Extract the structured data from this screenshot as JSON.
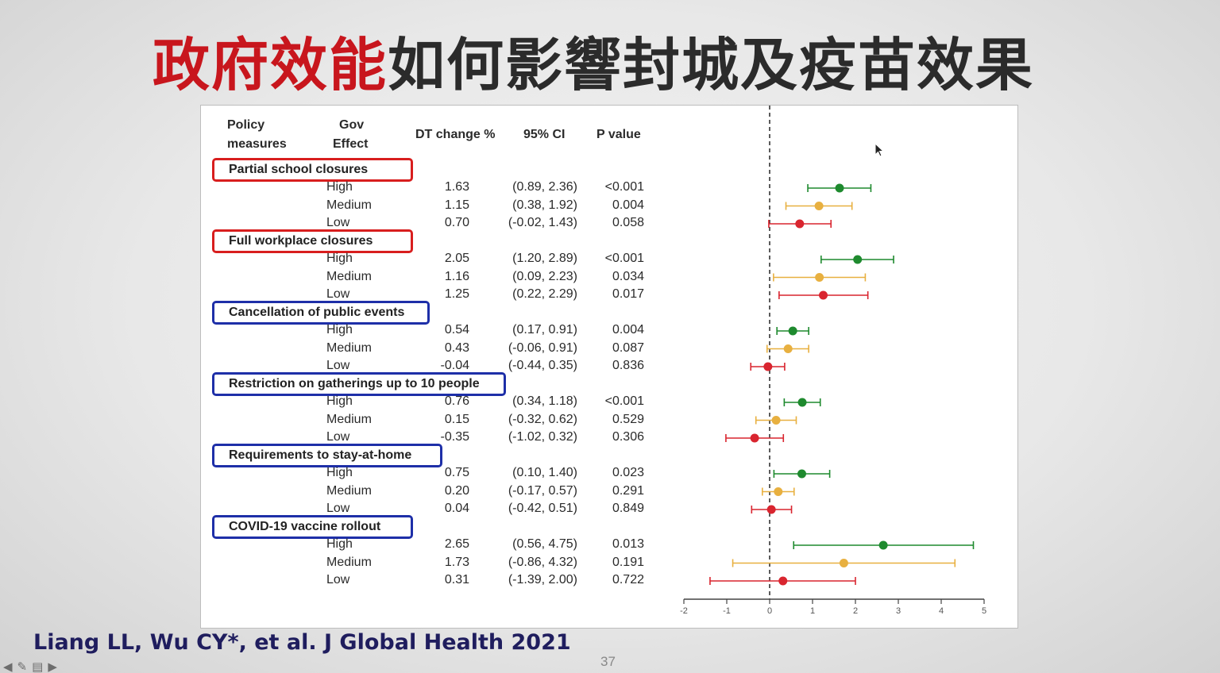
{
  "slide": {
    "title_highlight": "政府效能",
    "title_rest": "如何影響封城及疫苗效果",
    "citation": "Liang LL, Wu CY*, et al. J Global Health 2021",
    "page_number": "37"
  },
  "table": {
    "headers": {
      "policy_line1": "Policy",
      "policy_line2": "measures",
      "gov_line1": "Gov",
      "gov_line2": "Effect",
      "dt_change": "DT change %",
      "ci": "95% CI",
      "p_value": "P value"
    },
    "groups": [
      {
        "policy": "Partial school closures",
        "box_color": "#d81e1e",
        "rows": [
          {
            "level": "High",
            "dt": "1.63",
            "ci": "(0.89, 2.36)",
            "p": "<0.001"
          },
          {
            "level": "Medium",
            "dt": "1.15",
            "ci": "(0.38, 1.92)",
            "p": "0.004"
          },
          {
            "level": "Low",
            "dt": "0.70",
            "ci": "(-0.02, 1.43)",
            "p": "0.058"
          }
        ]
      },
      {
        "policy": "Full workplace closures",
        "box_color": "#d81e1e",
        "rows": [
          {
            "level": "High",
            "dt": "2.05",
            "ci": "(1.20, 2.89)",
            "p": "<0.001"
          },
          {
            "level": "Medium",
            "dt": "1.16",
            "ci": "(0.09, 2.23)",
            "p": "0.034"
          },
          {
            "level": "Low",
            "dt": "1.25",
            "ci": "(0.22, 2.29)",
            "p": "0.017"
          }
        ]
      },
      {
        "policy": "Cancellation of public events",
        "box_color": "#1e2fa8",
        "rows": [
          {
            "level": "High",
            "dt": "0.54",
            "ci": "(0.17, 0.91)",
            "p": "0.004"
          },
          {
            "level": "Medium",
            "dt": "0.43",
            "ci": "(-0.06, 0.91)",
            "p": "0.087"
          },
          {
            "level": "Low",
            "dt": "-0.04",
            "ci": "(-0.44, 0.35)",
            "p": "0.836"
          }
        ]
      },
      {
        "policy": "Restriction on gatherings up to 10 people",
        "box_color": "#1e2fa8",
        "rows": [
          {
            "level": "High",
            "dt": "0.76",
            "ci": "(0.34, 1.18)",
            "p": "<0.001"
          },
          {
            "level": "Medium",
            "dt": "0.15",
            "ci": "(-0.32, 0.62)",
            "p": "0.529"
          },
          {
            "level": "Low",
            "dt": "-0.35",
            "ci": "(-1.02, 0.32)",
            "p": "0.306"
          }
        ]
      },
      {
        "policy": "Requirements to stay-at-home",
        "box_color": "#1e2fa8",
        "rows": [
          {
            "level": "High",
            "dt": "0.75",
            "ci": "(0.10, 1.40)",
            "p": "0.023"
          },
          {
            "level": "Medium",
            "dt": "0.20",
            "ci": "(-0.17, 0.57)",
            "p": "0.291"
          },
          {
            "level": "Low",
            "dt": "0.04",
            "ci": "(-0.42, 0.51)",
            "p": "0.849"
          }
        ]
      },
      {
        "policy": "COVID-19 vaccine rollout",
        "box_color": "#1e2fa8",
        "rows": [
          {
            "level": "High",
            "dt": "2.65",
            "ci": "(0.56, 4.75)",
            "p": "0.013"
          },
          {
            "level": "Medium",
            "dt": "1.73",
            "ci": "(-0.86, 4.32)",
            "p": "0.191"
          },
          {
            "level": "Low",
            "dt": "0.31",
            "ci": "(-1.39, 2.00)",
            "p": "0.722"
          }
        ]
      }
    ]
  },
  "colors": {
    "High": "#1e8a2e",
    "Medium": "#e8b040",
    "Low": "#d9252f",
    "axis": "#444444"
  },
  "chart_data": {
    "type": "scatter",
    "xlim": [
      -2,
      5
    ],
    "x_ticks": [
      "-2",
      "-1",
      "0",
      "1",
      "2",
      "3",
      "4",
      "5"
    ],
    "reference_line": 0,
    "series": [
      {
        "name": "High",
        "values": [
          1.63,
          2.05,
          0.54,
          0.76,
          0.75,
          2.65
        ],
        "lower": [
          0.89,
          1.2,
          0.17,
          0.34,
          0.1,
          0.56
        ],
        "upper": [
          2.36,
          2.89,
          0.91,
          1.18,
          1.4,
          4.75
        ]
      },
      {
        "name": "Medium",
        "values": [
          1.15,
          1.16,
          0.43,
          0.15,
          0.2,
          1.73
        ],
        "lower": [
          0.38,
          0.09,
          -0.06,
          -0.32,
          -0.17,
          -0.86
        ],
        "upper": [
          1.92,
          2.23,
          0.91,
          0.62,
          0.57,
          4.32
        ]
      },
      {
        "name": "Low",
        "values": [
          0.7,
          1.25,
          -0.04,
          -0.35,
          0.04,
          0.31
        ],
        "lower": [
          -0.02,
          0.22,
          -0.44,
          -1.02,
          -0.42,
          -1.39
        ],
        "upper": [
          1.43,
          2.29,
          0.35,
          0.32,
          0.51,
          2.0
        ]
      }
    ]
  }
}
